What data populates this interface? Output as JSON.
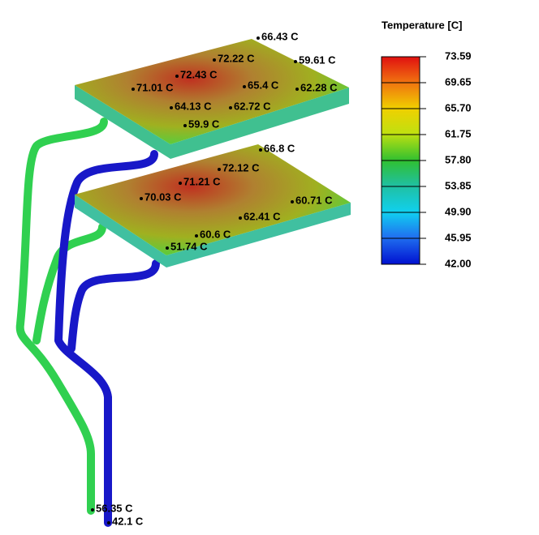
{
  "legend": {
    "title": "Temperature [C]",
    "ticks": [
      "73.59",
      "69.65",
      "65.70",
      "61.75",
      "57.80",
      "53.85",
      "49.90",
      "45.95",
      "42.00"
    ]
  },
  "probes": [
    "66.43 C",
    "72.22 C",
    "59.61 C",
    "72.43 C",
    "71.01 C",
    "65.4 C",
    "62.28 C",
    "64.13 C",
    "62.72 C",
    "59.9 C",
    "66.8 C",
    "72.12 C",
    "71.21 C",
    "70.03 C",
    "60.71 C",
    "62.41 C",
    "60.6 C",
    "51.74 C",
    "56.35 C",
    "42.1 C"
  ]
}
